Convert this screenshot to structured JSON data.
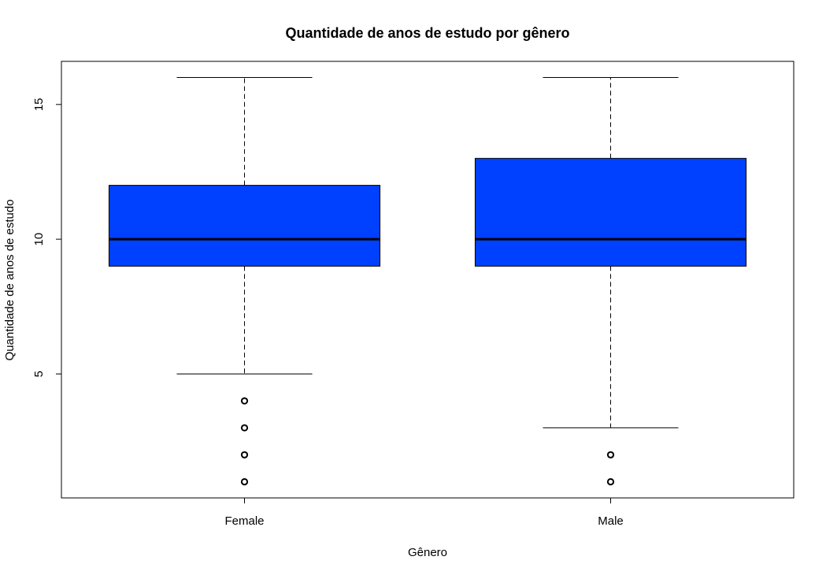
{
  "chart_data": {
    "type": "boxplot",
    "title": "Quantidade de anos de estudo por gênero",
    "xlabel": "Gênero",
    "ylabel": "Quantidade de anos de estudo",
    "ylim": [
      0.4,
      16.6
    ],
    "yticks": [
      5,
      10,
      15
    ],
    "grid": false,
    "box_color": "#0040ff",
    "categories": [
      "Female",
      "Male"
    ],
    "boxes": [
      {
        "category": "Female",
        "whisker_low": 5,
        "q1": 9,
        "median": 10,
        "q3": 12,
        "whisker_high": 16,
        "outliers": [
          1,
          2,
          3,
          4
        ]
      },
      {
        "category": "Male",
        "whisker_low": 3,
        "q1": 9,
        "median": 10,
        "q3": 13,
        "whisker_high": 16,
        "outliers": [
          1,
          2
        ]
      }
    ]
  }
}
